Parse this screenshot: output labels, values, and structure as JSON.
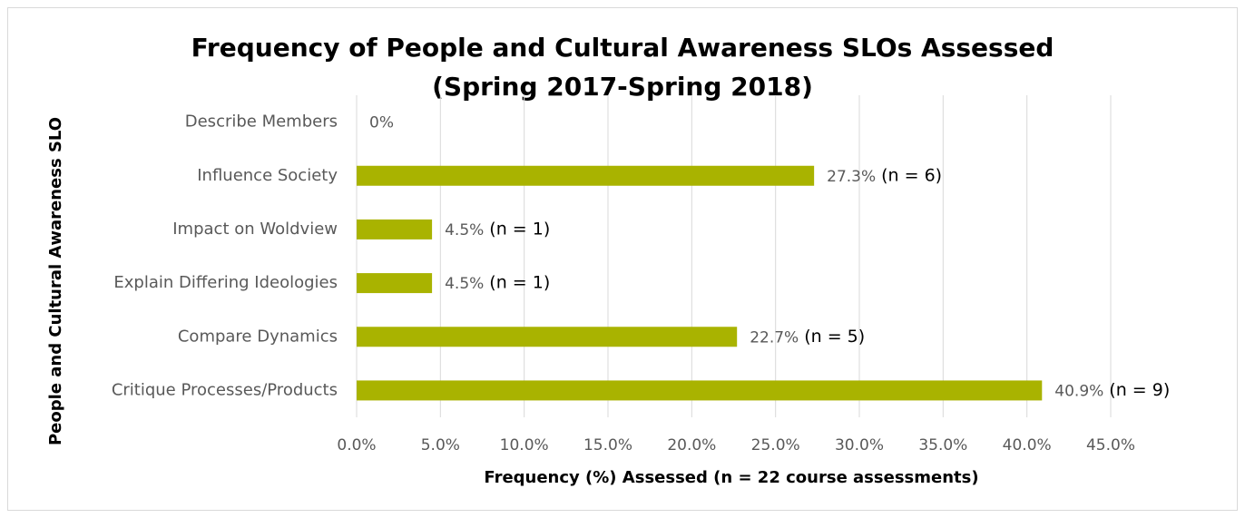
{
  "chart_data": {
    "type": "bar",
    "orientation": "horizontal",
    "title": "Frequency of People and Cultural Awareness SLOs Assessed",
    "subtitle": "(Spring 2017-Spring 2018)",
    "x_label": "Frequency (%) Assessed (n = 22 course assessments)",
    "y_label": "People and  Cultural  Awareness SLO",
    "categories": [
      "Describe Members",
      "Influence Society",
      "Impact on Woldview",
      "Explain Differing Ideologies",
      "Compare Dynamics",
      "Critique Processes/Products"
    ],
    "values": [
      0,
      27.3,
      4.5,
      4.5,
      22.7,
      40.9
    ],
    "value_labels": [
      "0%",
      "27.3%",
      "4.5%",
      "4.5%",
      "22.7%",
      "40.9%"
    ],
    "annotations": [
      null,
      "(n = 6)",
      "(n = 1)",
      "(n = 1)",
      "(n = 5)",
      "(n = 9)"
    ],
    "color": "#a9b300",
    "xlim": [
      0,
      45
    ],
    "xticks": [
      {
        "value": 0,
        "label": "0.0%"
      },
      {
        "value": 5,
        "label": "5.0%"
      },
      {
        "value": 10,
        "label": "10.0%"
      },
      {
        "value": 15,
        "label": "15.0%"
      },
      {
        "value": 20,
        "label": "20.0%"
      },
      {
        "value": 25,
        "label": "25.0%"
      },
      {
        "value": 30,
        "label": "30.0%"
      },
      {
        "value": 35,
        "label": "35.0%"
      },
      {
        "value": 40,
        "label": "40.0%"
      },
      {
        "value": 45,
        "label": "45.0%"
      }
    ],
    "grid": true
  }
}
